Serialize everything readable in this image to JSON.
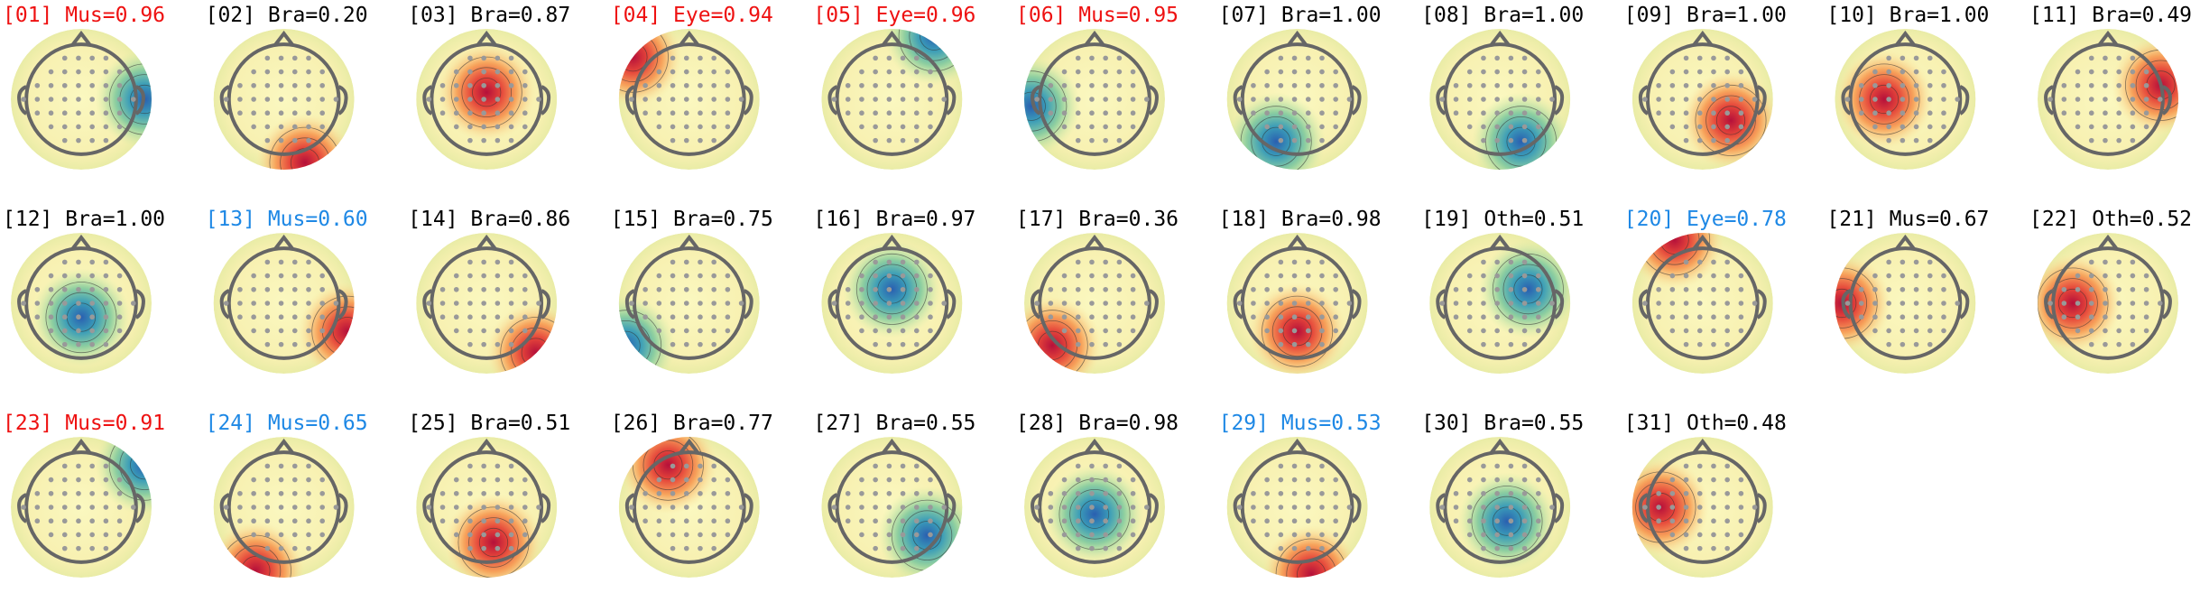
{
  "components": [
    {
      "label": "[01] Mus=0.96",
      "color": "#ee1111"
    },
    {
      "label": "[02] Bra=0.20",
      "color": "#000000"
    },
    {
      "label": "[03] Bra=0.87",
      "color": "#000000"
    },
    {
      "label": "[04] Eye=0.94",
      "color": "#ee1111"
    },
    {
      "label": "[05] Eye=0.96",
      "color": "#ee1111"
    },
    {
      "label": "[06] Mus=0.95",
      "color": "#ee1111"
    },
    {
      "label": "[07] Bra=1.00",
      "color": "#000000"
    },
    {
      "label": "[08] Bra=1.00",
      "color": "#000000"
    },
    {
      "label": "[09] Bra=1.00",
      "color": "#000000"
    },
    {
      "label": "[10] Bra=1.00",
      "color": "#000000"
    },
    {
      "label": "[11] Bra=0.49",
      "color": "#000000"
    },
    {
      "label": "[12] Bra=1.00",
      "color": "#000000"
    },
    {
      "label": "[13] Mus=0.60",
      "color": "#1e88e5"
    },
    {
      "label": "[14] Bra=0.86",
      "color": "#000000"
    },
    {
      "label": "[15] Bra=0.75",
      "color": "#000000"
    },
    {
      "label": "[16] Bra=0.97",
      "color": "#000000"
    },
    {
      "label": "[17] Bra=0.36",
      "color": "#000000"
    },
    {
      "label": "[18] Bra=0.98",
      "color": "#000000"
    },
    {
      "label": "[19] Oth=0.51",
      "color": "#000000"
    },
    {
      "label": "[20] Eye=0.78",
      "color": "#1e88e5"
    },
    {
      "label": "[21] Mus=0.67",
      "color": "#000000"
    },
    {
      "label": "[22] Oth=0.52",
      "color": "#000000"
    },
    {
      "label": "[23] Mus=0.91",
      "color": "#ee1111"
    },
    {
      "label": "[24] Mus=0.65",
      "color": "#1e88e5"
    },
    {
      "label": "[25] Bra=0.51",
      "color": "#000000"
    },
    {
      "label": "[26] Bra=0.77",
      "color": "#000000"
    },
    {
      "label": "[27] Bra=0.55",
      "color": "#000000"
    },
    {
      "label": "[28] Bra=0.98",
      "color": "#000000"
    },
    {
      "label": "[29] Mus=0.53",
      "color": "#1e88e5"
    },
    {
      "label": "[30] Bra=0.55",
      "color": "#000000"
    },
    {
      "label": "[31] Oth=0.48",
      "color": "#000000"
    }
  ]
}
